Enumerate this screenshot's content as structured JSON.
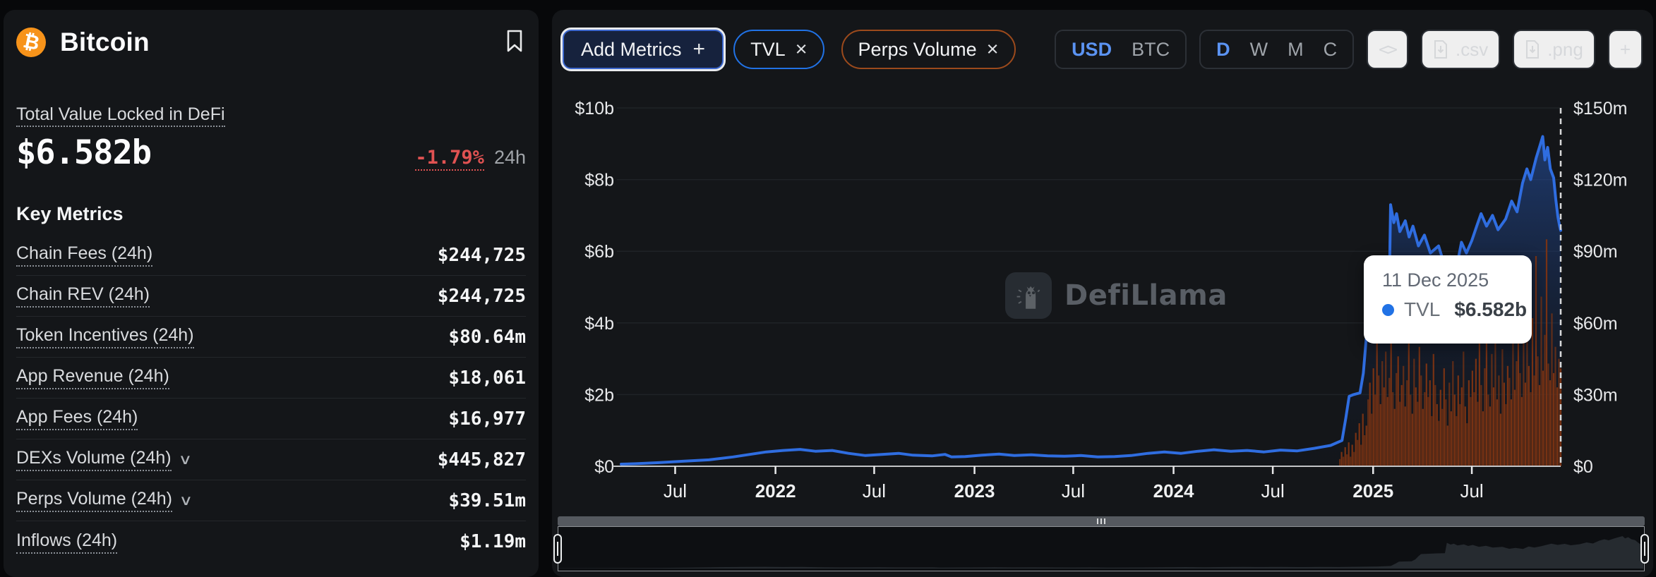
{
  "left_panel": {
    "coin": {
      "name": "Bitcoin",
      "symbol": "₿",
      "icon_color": "#f7931a"
    },
    "tvl": {
      "label": "Total Value Locked in DeFi",
      "value": "$6.582b",
      "change": "-1.79%",
      "change_period": "24h"
    },
    "key_metrics_title": "Key Metrics",
    "metrics": [
      {
        "label": "Chain Fees (24h)",
        "value": "$244,725",
        "expandable": false
      },
      {
        "label": "Chain REV (24h)",
        "value": "$244,725",
        "expandable": false
      },
      {
        "label": "Token Incentives (24h)",
        "value": "$80.64m",
        "expandable": false
      },
      {
        "label": "App Revenue (24h)",
        "value": "$18,061",
        "expandable": false
      },
      {
        "label": "App Fees (24h)",
        "value": "$16,977",
        "expandable": false
      },
      {
        "label": "DEXs Volume (24h)",
        "value": "$445,827",
        "expandable": true
      },
      {
        "label": "Perps Volume (24h)",
        "value": "$39.51m",
        "expandable": true
      },
      {
        "label": "Inflows (24h)",
        "value": "$1.19m",
        "expandable": false
      }
    ]
  },
  "toolbar": {
    "add_metrics": {
      "label": "Add Metrics",
      "plus": "+"
    },
    "chips": [
      {
        "label": "TVL",
        "close": "×",
        "color": "#2172e5"
      },
      {
        "label": "Perps Volume",
        "close": "×",
        "color": "#9c4a1c"
      }
    ],
    "currency": {
      "options": [
        "USD",
        "BTC"
      ],
      "active": "USD"
    },
    "intervals": {
      "options": [
        "D",
        "W",
        "M",
        "C"
      ],
      "active": "D"
    },
    "buttons": {
      "embed": "<>",
      "csv": ".csv",
      "png": ".png",
      "more": "+"
    }
  },
  "chart": {
    "watermark": "DefiLlama",
    "tooltip": {
      "date": "11 Dec 2025",
      "series": "TVL",
      "value": "$6.582b",
      "dot_color": "#2172e5"
    }
  },
  "chart_data": {
    "type": "line+bar",
    "title": "Bitcoin TVL and Perps Volume",
    "x_range": [
      "2021-03-24",
      "2025-12-11"
    ],
    "grid": true,
    "watermark": "DefiLlama",
    "crosshair_date": "2025-12-11",
    "left_axis": {
      "unit": "$b",
      "min": 0,
      "max": 10,
      "ticks": [
        "$10b",
        "$8b",
        "$6b",
        "$4b",
        "$2b",
        "$0"
      ]
    },
    "right_axis": {
      "unit": "$m",
      "min": 0,
      "max": 150,
      "ticks": [
        "$150m",
        "$120m",
        "$90m",
        "$60m",
        "$30m",
        "$0"
      ]
    },
    "x_ticks": [
      {
        "label": "Jul",
        "date": "2021-07-01",
        "bold": false
      },
      {
        "label": "2022",
        "date": "2022-01-01",
        "bold": true
      },
      {
        "label": "Jul",
        "date": "2022-07-01",
        "bold": false
      },
      {
        "label": "2023",
        "date": "2023-01-01",
        "bold": true
      },
      {
        "label": "Jul",
        "date": "2023-07-01",
        "bold": false
      },
      {
        "label": "2024",
        "date": "2024-01-01",
        "bold": true
      },
      {
        "label": "Jul",
        "date": "2024-07-01",
        "bold": false
      },
      {
        "label": "2025",
        "date": "2025-01-01",
        "bold": true
      },
      {
        "label": "Jul",
        "date": "2025-07-01",
        "bold": false
      }
    ],
    "series": [
      {
        "name": "TVL",
        "type": "line",
        "axis": "left",
        "unit": "$b",
        "color": "#2f6de0",
        "points": [
          [
            "2021-03-24",
            0.06
          ],
          [
            "2021-04-20",
            0.07
          ],
          [
            "2021-06-01",
            0.1
          ],
          [
            "2021-07-15",
            0.14
          ],
          [
            "2021-09-01",
            0.18
          ],
          [
            "2021-10-15",
            0.26
          ],
          [
            "2021-11-15",
            0.33
          ],
          [
            "2021-12-15",
            0.4
          ],
          [
            "2022-01-15",
            0.44
          ],
          [
            "2022-02-15",
            0.47
          ],
          [
            "2022-03-15",
            0.42
          ],
          [
            "2022-04-15",
            0.44
          ],
          [
            "2022-05-15",
            0.36
          ],
          [
            "2022-06-15",
            0.3
          ],
          [
            "2022-07-15",
            0.33
          ],
          [
            "2022-08-15",
            0.36
          ],
          [
            "2022-09-10",
            0.31
          ],
          [
            "2022-10-15",
            0.29
          ],
          [
            "2022-11-08",
            0.33
          ],
          [
            "2022-11-20",
            0.26
          ],
          [
            "2022-12-15",
            0.27
          ],
          [
            "2023-01-15",
            0.31
          ],
          [
            "2023-02-15",
            0.34
          ],
          [
            "2023-03-15",
            0.3
          ],
          [
            "2023-04-15",
            0.32
          ],
          [
            "2023-05-15",
            0.29
          ],
          [
            "2023-06-15",
            0.28
          ],
          [
            "2023-07-15",
            0.3
          ],
          [
            "2023-08-15",
            0.26
          ],
          [
            "2023-09-15",
            0.27
          ],
          [
            "2023-10-15",
            0.3
          ],
          [
            "2023-11-15",
            0.36
          ],
          [
            "2023-12-15",
            0.4
          ],
          [
            "2024-01-15",
            0.36
          ],
          [
            "2024-02-15",
            0.42
          ],
          [
            "2024-03-15",
            0.46
          ],
          [
            "2024-04-15",
            0.42
          ],
          [
            "2024-05-15",
            0.44
          ],
          [
            "2024-06-15",
            0.4
          ],
          [
            "2024-07-15",
            0.45
          ],
          [
            "2024-08-15",
            0.43
          ],
          [
            "2024-09-15",
            0.5
          ],
          [
            "2024-10-15",
            0.58
          ],
          [
            "2024-11-05",
            0.72
          ],
          [
            "2024-11-12",
            1.35
          ],
          [
            "2024-11-18",
            1.95
          ],
          [
            "2024-11-26",
            2.0
          ],
          [
            "2024-12-08",
            2.05
          ],
          [
            "2024-12-14",
            2.6
          ],
          [
            "2024-12-19",
            3.5
          ],
          [
            "2024-12-23",
            4.1
          ],
          [
            "2025-01-05",
            4.2
          ],
          [
            "2025-01-18",
            4.3
          ],
          [
            "2025-01-30",
            4.35
          ],
          [
            "2025-02-02",
            7.3
          ],
          [
            "2025-02-08",
            6.8
          ],
          [
            "2025-02-13",
            7.05
          ],
          [
            "2025-02-19",
            6.55
          ],
          [
            "2025-03-01",
            6.85
          ],
          [
            "2025-03-08",
            6.4
          ],
          [
            "2025-03-15",
            6.7
          ],
          [
            "2025-03-25",
            6.15
          ],
          [
            "2025-04-05",
            6.45
          ],
          [
            "2025-04-16",
            5.95
          ],
          [
            "2025-05-01",
            6.15
          ],
          [
            "2025-05-12",
            5.6
          ],
          [
            "2025-05-22",
            5.85
          ],
          [
            "2025-06-03",
            5.55
          ],
          [
            "2025-06-12",
            6.25
          ],
          [
            "2025-06-21",
            5.95
          ],
          [
            "2025-07-01",
            6.3
          ],
          [
            "2025-07-10",
            6.7
          ],
          [
            "2025-07-18",
            7.05
          ],
          [
            "2025-07-28",
            6.7
          ],
          [
            "2025-08-08",
            7.0
          ],
          [
            "2025-08-18",
            6.6
          ],
          [
            "2025-09-01",
            6.9
          ],
          [
            "2025-09-12",
            7.4
          ],
          [
            "2025-09-22",
            7.1
          ],
          [
            "2025-10-02",
            7.9
          ],
          [
            "2025-10-10",
            8.3
          ],
          [
            "2025-10-17",
            8.0
          ],
          [
            "2025-10-27",
            8.6
          ],
          [
            "2025-11-04",
            9.0
          ],
          [
            "2025-11-08",
            9.2
          ],
          [
            "2025-11-12",
            8.55
          ],
          [
            "2025-11-17",
            8.9
          ],
          [
            "2025-11-22",
            8.3
          ],
          [
            "2025-11-28",
            8.05
          ],
          [
            "2025-12-02",
            7.45
          ],
          [
            "2025-12-06",
            6.95
          ],
          [
            "2025-12-09",
            6.7
          ],
          [
            "2025-12-11",
            6.582
          ]
        ]
      },
      {
        "name": "Perps Volume",
        "type": "bar",
        "axis": "right",
        "unit": "$m",
        "color": "#7d3413",
        "start": "2024-11-01",
        "end": "2025-12-11",
        "values": [
          3,
          6,
          4,
          8,
          5,
          10,
          4,
          9,
          6,
          14,
          11,
          18,
          9,
          22,
          13,
          17,
          28,
          35,
          22,
          41,
          30,
          55,
          38,
          26,
          44,
          33,
          48,
          29,
          37,
          52,
          31,
          24,
          39,
          46,
          27,
          34,
          42,
          25,
          36,
          58,
          30,
          22,
          45,
          33,
          27,
          50,
          38,
          24,
          31,
          43,
          29,
          36,
          21,
          47,
          34,
          26,
          19,
          32,
          24,
          41,
          28,
          17,
          35,
          23,
          44,
          30,
          21,
          38,
          26,
          33,
          48,
          25,
          18,
          36,
          29,
          40,
          31,
          45,
          27,
          52,
          34,
          23,
          41,
          56,
          30,
          25,
          47,
          33,
          60,
          28,
          38,
          22,
          49,
          35,
          26,
          42,
          37,
          28,
          53,
          32,
          44,
          68,
          39,
          29,
          57,
          35,
          75,
          42,
          31,
          62,
          38,
          88,
          46,
          34,
          71,
          40,
          55,
          95,
          43,
          36,
          64,
          39,
          50,
          33,
          45,
          41
        ]
      }
    ]
  }
}
